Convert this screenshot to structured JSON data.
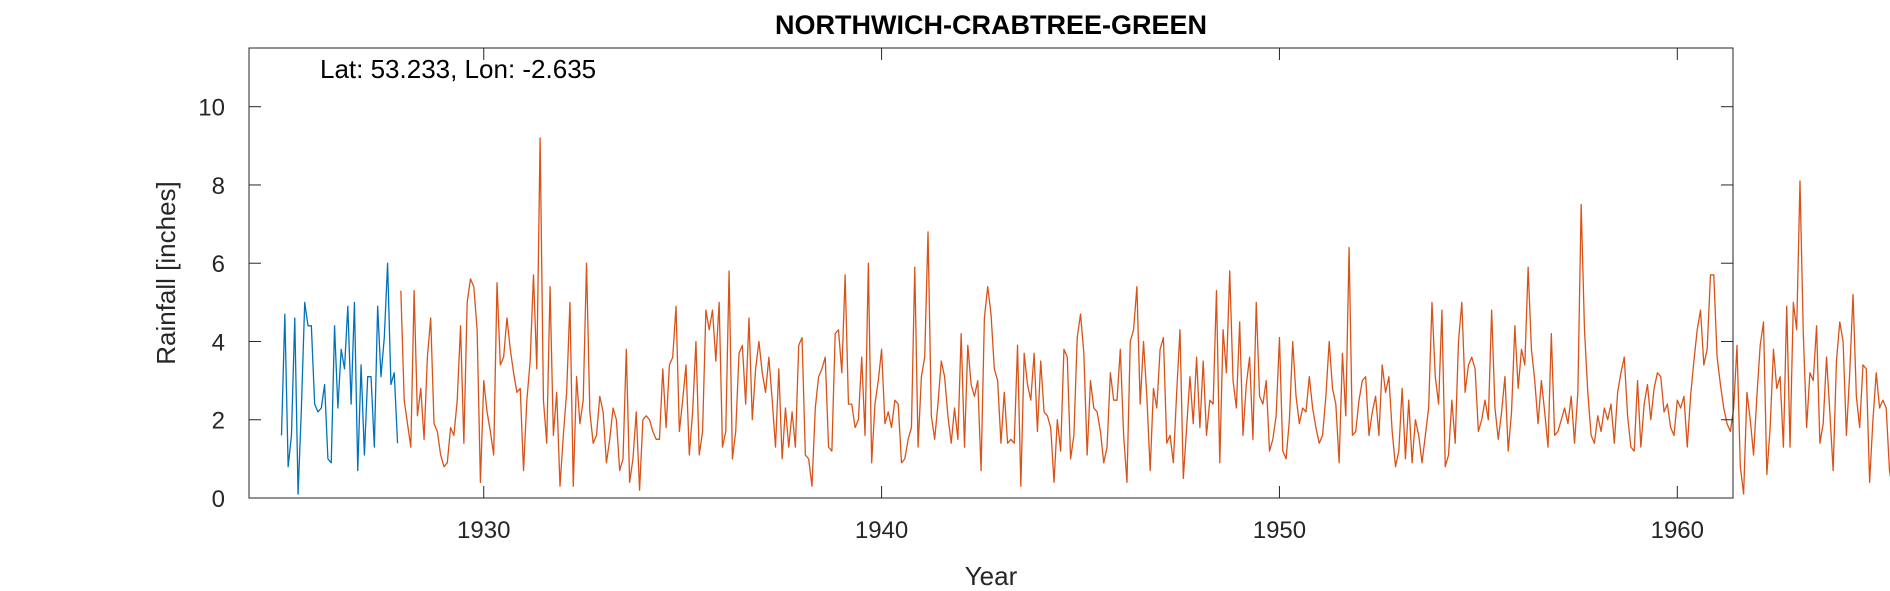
{
  "chart_data": {
    "type": "line",
    "title": "NORTHWICH-CRABTREE-GREEN",
    "annotation": "Lat: 53.233, Lon: -2.635",
    "xlabel": "Year",
    "ylabel": "Rainfall [inches]",
    "xlim": [
      1924.1,
      1961.4
    ],
    "ylim": [
      0,
      11.5
    ],
    "x_ticks": [
      1930,
      1940,
      1950,
      1960
    ],
    "y_ticks": [
      0,
      2,
      4,
      6,
      8,
      10
    ],
    "grid": false,
    "legend": "none",
    "series": [
      {
        "color": "#0072BD",
        "start": 1924.917,
        "step": 0.0833333,
        "values": [
          1.6,
          4.7,
          0.8,
          1.6,
          4.6,
          0.1,
          2.3,
          5.0,
          4.4,
          4.4,
          2.4,
          2.2,
          2.3,
          2.9,
          1.0,
          0.9,
          4.4,
          2.3,
          3.8,
          3.3,
          4.9,
          2.4,
          5.0,
          0.7,
          3.4,
          1.1,
          3.1,
          3.1,
          1.3,
          4.9,
          3.1,
          4.1,
          6.0,
          2.9,
          3.2,
          1.4
        ]
      },
      {
        "color": "#D95319",
        "start": 1927.917,
        "step": 0.0833333,
        "values": [
          5.3,
          2.5,
          1.9,
          1.3,
          5.3,
          2.1,
          2.8,
          1.5,
          3.6,
          4.6,
          1.9,
          1.7,
          1.1,
          0.8,
          0.9,
          1.8,
          1.6,
          2.5,
          4.4,
          1.4,
          5.0,
          5.6,
          5.4,
          4.3,
          0.4,
          3.0,
          2.2,
          1.7,
          1.1,
          5.5,
          3.4,
          3.6,
          4.6,
          3.8,
          3.2,
          2.7,
          2.8,
          0.7,
          2.5,
          3.5,
          5.7,
          3.3,
          9.2,
          2.5,
          1.4,
          5.4,
          1.6,
          2.7,
          0.3,
          1.6,
          2.7,
          5.0,
          0.3,
          3.1,
          1.9,
          2.5,
          6.0,
          2.2,
          1.4,
          1.6,
          2.6,
          2.2,
          0.9,
          1.5,
          2.3,
          2.0,
          0.7,
          1.0,
          3.8,
          0.4,
          1.0,
          2.2,
          0.2,
          2.0,
          2.1,
          2.0,
          1.7,
          1.5,
          1.5,
          3.3,
          1.8,
          3.4,
          3.6,
          4.9,
          1.7,
          2.5,
          3.4,
          1.1,
          2.2,
          4.0,
          1.1,
          1.7,
          4.8,
          4.3,
          4.8,
          3.5,
          5.0,
          1.3,
          1.7,
          5.8,
          1.0,
          1.7,
          3.7,
          3.9,
          2.4,
          4.6,
          2.0,
          3.3,
          4.0,
          3.2,
          2.7,
          3.6,
          2.5,
          1.3,
          3.3,
          1.0,
          2.3,
          1.3,
          2.2,
          1.3,
          3.9,
          4.1,
          1.1,
          1.0,
          0.3,
          2.3,
          3.1,
          3.3,
          3.6,
          1.3,
          1.2,
          4.2,
          4.3,
          3.2,
          5.7,
          2.4,
          2.4,
          1.8,
          2.0,
          3.6,
          1.6,
          6.0,
          0.9,
          2.4,
          3.0,
          3.8,
          1.9,
          2.2,
          1.8,
          2.5,
          2.4,
          0.9,
          1.0,
          1.5,
          1.8,
          5.9,
          1.3,
          3.1,
          3.6,
          6.8,
          2.1,
          1.5,
          2.4,
          3.5,
          3.1,
          2.1,
          1.4,
          2.3,
          1.5,
          4.2,
          1.3,
          3.9,
          2.9,
          2.6,
          3.0,
          0.7,
          4.6,
          5.4,
          4.7,
          3.3,
          3.0,
          1.4,
          2.7,
          1.4,
          1.5,
          1.4,
          3.9,
          0.3,
          3.7,
          2.9,
          2.5,
          3.7,
          1.7,
          3.5,
          2.2,
          2.1,
          1.8,
          0.4,
          2.0,
          1.2,
          3.8,
          3.6,
          1.0,
          1.6,
          4.1,
          4.7,
          3.7,
          1.1,
          3.0,
          2.3,
          2.2,
          1.7,
          0.9,
          1.3,
          3.2,
          2.5,
          2.5,
          3.8,
          1.6,
          0.4,
          4.0,
          4.3,
          5.4,
          2.4,
          4.0,
          2.6,
          0.7,
          2.8,
          2.3,
          3.8,
          4.1,
          1.4,
          1.6,
          0.9,
          2.7,
          4.3,
          0.5,
          1.8,
          3.1,
          1.9,
          3.6,
          1.8,
          3.5,
          1.6,
          2.5,
          2.4,
          5.3,
          0.9,
          4.3,
          3.2,
          5.8,
          3.0,
          2.3,
          4.5,
          1.6,
          2.9,
          3.6,
          1.5,
          5.0,
          2.6,
          2.4,
          3.0,
          1.2,
          1.5,
          2.1,
          4.1,
          1.2,
          1.0,
          2.0,
          4.0,
          2.6,
          1.9,
          2.3,
          2.2,
          3.1,
          2.3,
          1.8,
          1.4,
          1.6,
          2.6,
          4.0,
          2.8,
          2.4,
          0.9,
          3.7,
          2.1,
          6.4,
          1.6,
          1.7,
          2.5,
          3.0,
          3.1,
          1.6,
          2.2,
          2.6,
          1.6,
          3.4,
          2.7,
          3.1,
          1.7,
          0.8,
          1.2,
          2.8,
          1.0,
          2.5,
          0.9,
          2.0,
          1.6,
          0.9,
          1.6,
          2.3,
          5.0,
          3.1,
          2.4,
          4.8,
          0.8,
          1.1,
          2.5,
          1.4,
          4.0,
          5.0,
          2.7,
          3.4,
          3.6,
          3.3,
          1.7,
          2.0,
          2.5,
          2.0,
          4.8,
          2.3,
          1.5,
          2.2,
          3.1,
          1.2,
          2.2,
          4.4,
          2.8,
          3.8,
          3.4,
          5.9,
          3.8,
          3.0,
          1.9,
          3.0,
          2.2,
          1.3,
          4.2,
          1.6,
          1.7,
          2.0,
          2.3,
          1.9,
          2.6,
          1.4,
          2.7,
          7.5,
          4.3,
          2.7,
          1.6,
          1.4,
          2.1,
          1.7,
          2.3,
          2.0,
          2.4,
          1.4,
          2.7,
          3.2,
          3.6,
          2.1,
          1.3,
          1.2,
          3.0,
          1.3,
          2.4,
          2.9,
          2.0,
          2.8,
          3.2,
          3.1,
          2.2,
          2.4,
          1.8,
          1.6,
          2.5,
          2.3,
          2.6,
          1.3,
          2.6,
          3.5,
          4.3,
          4.8,
          3.4,
          3.8,
          5.7,
          5.7,
          3.6,
          2.9,
          2.3,
          1.9,
          1.7,
          2.3,
          3.9,
          0.8,
          0.1,
          2.7,
          2.0,
          1.1,
          2.6,
          3.9,
          4.5,
          0.6,
          1.8,
          3.8,
          2.8,
          3.1,
          1.3,
          4.9,
          1.3,
          5.0,
          4.3,
          8.1,
          4.2,
          1.8,
          3.2,
          3.0,
          4.4,
          1.4,
          1.9,
          3.6,
          2.2,
          0.7,
          3.5,
          4.5,
          4.0,
          1.6,
          3.2,
          5.2,
          2.6,
          1.8,
          3.4,
          3.3,
          0.4,
          2.0,
          3.2,
          2.3,
          2.5,
          2.3,
          0.7,
          0.2,
          2.5,
          3.8,
          5.0,
          4.9,
          3.7,
          2.4,
          1.5,
          1.4,
          2.2,
          2.3,
          3.2,
          5.0,
          3.8,
          4.7,
          4.7,
          2.8
        ]
      }
    ]
  }
}
